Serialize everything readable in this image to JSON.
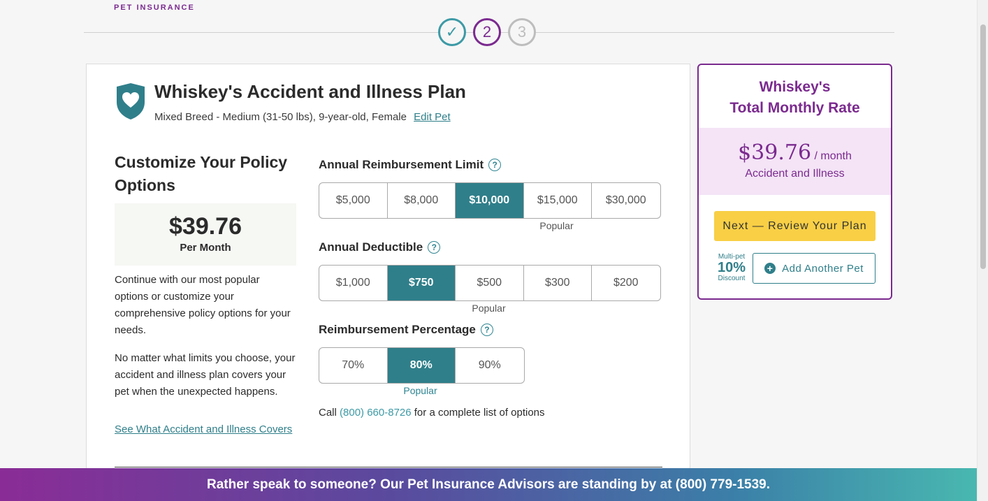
{
  "brand": "PET INSURANCE",
  "steps": [
    {
      "label": "✓",
      "state": "complete"
    },
    {
      "label": "2",
      "state": "current"
    },
    {
      "label": "3",
      "state": "upcoming"
    }
  ],
  "plan": {
    "title": "Whiskey's Accident and Illness Plan",
    "subtitle": "Mixed Breed - Medium (31-50 lbs), 9-year-old, Female",
    "edit_link": "Edit Pet"
  },
  "customize": {
    "title": "Customize Your Policy Options",
    "price": "$39.76",
    "price_period": "Per Month",
    "para1": "Continue with our most popular options or customize your comprehensive policy options for your needs.",
    "para2": "No matter what limits you choose, your accident and illness plan covers your pet when the unexpected happens.",
    "see_link": "See What Accident and Illness Covers"
  },
  "options": {
    "limit": {
      "label": "Annual Reimbursement Limit",
      "choices": [
        "$5,000",
        "$8,000",
        "$10,000",
        "$15,000",
        "$30,000"
      ],
      "selected": "$10,000",
      "popular_label": "Popular"
    },
    "deductible": {
      "label": "Annual Deductible",
      "choices": [
        "$1,000",
        "$750",
        "$500",
        "$300",
        "$200"
      ],
      "selected": "$750",
      "popular_label": "Popular"
    },
    "percentage": {
      "label": "Reimbursement Percentage",
      "choices": [
        "70%",
        "80%",
        "90%"
      ],
      "selected": "80%",
      "popular_label": "Popular"
    },
    "call_prefix": "Call",
    "call_phone": "(800) 660-8726",
    "call_suffix": "for a complete list of options"
  },
  "summary": {
    "title_line1": "Whiskey's",
    "title_line2": "Total Monthly Rate",
    "rate": "$39.76",
    "rate_period": "/ month",
    "rate_kind": "Accident and Illness",
    "next_button": "Next — Review Your Plan",
    "multi_pet_top": "Multi-pet",
    "multi_pet_pct": "10%",
    "multi_pet_bottom": "Discount",
    "add_pet_button": "Add Another Pet"
  },
  "banner": "Rather speak to someone? Our Pet Insurance Advisors are standing by at (800) 779-1539.",
  "colors": {
    "brand_purple": "#7b2a8f",
    "teal": "#2f7f8a",
    "cta_yellow": "#f8cf45"
  }
}
